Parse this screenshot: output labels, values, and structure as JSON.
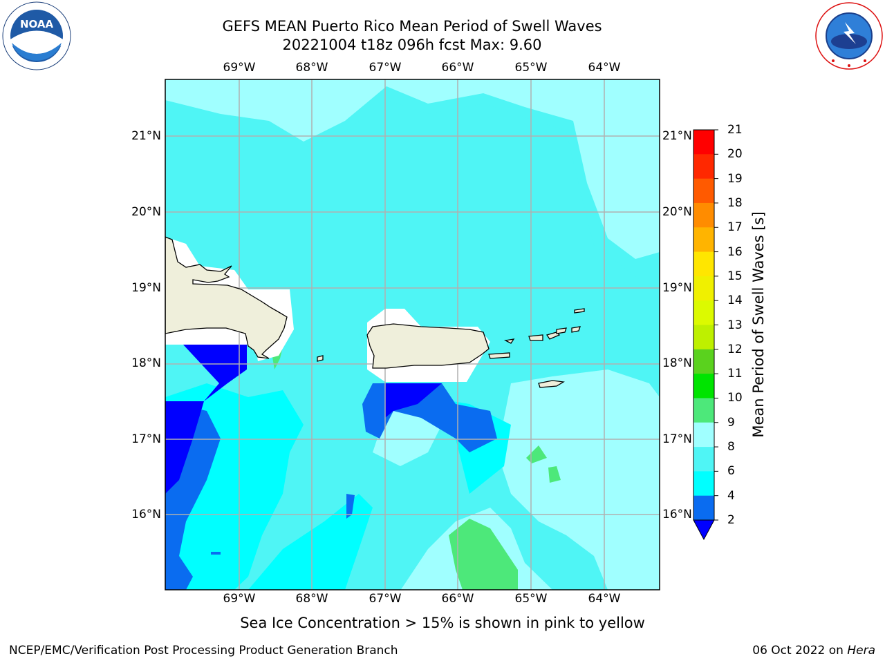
{
  "header": {
    "title_line1": "GEFS MEAN Puerto Rico Mean Period of Swell Waves",
    "title_line2": "20221004 t18z 096h fcst   Max: 9.60"
  },
  "logos": {
    "left": {
      "icon": "noaa-logo",
      "text": "NOAA",
      "ring_text": "NATIONAL OCEANIC AND ATMOSPHERIC ADMINISTRATION · U.S. DEPARTMENT OF COMMERCE"
    },
    "right": {
      "icon": "nws-logo",
      "ring_text": "NATIONAL WEATHER SERVICE"
    }
  },
  "map": {
    "lon_labels": [
      "69°W",
      "68°W",
      "67°W",
      "66°W",
      "65°W",
      "64°W"
    ],
    "lat_labels": [
      "21°N",
      "20°N",
      "19°N",
      "18°N",
      "17°N",
      "16°N"
    ],
    "land_color": "#efefdb",
    "grid_color": "#b0b0b0"
  },
  "colorbar": {
    "label": "Mean Period of Swell Waves [s]",
    "ticks": [
      "2",
      "4",
      "6",
      "8",
      "9",
      "10",
      "11",
      "12",
      "13",
      "14",
      "15",
      "16",
      "17",
      "18",
      "19",
      "20",
      "21"
    ],
    "colors": [
      "#0000ff",
      "#0a6cf0",
      "#00ffff",
      "#4ff5f5",
      "#a0ffff",
      "#4de87a",
      "#00e400",
      "#5ad21e",
      "#bef000",
      "#dcfa00",
      "#f0f000",
      "#ffe600",
      "#ffb400",
      "#ff8c00",
      "#ff5a00",
      "#ff2800",
      "#ff0000"
    ]
  },
  "footer": {
    "note": "Sea Ice Concentration > 15% is shown in pink to yellow",
    "left": "NCEP/EMC/Verification Post Processing Product Generation Branch",
    "right_date": "06 Oct 2022 on ",
    "right_host": "Hera"
  }
}
